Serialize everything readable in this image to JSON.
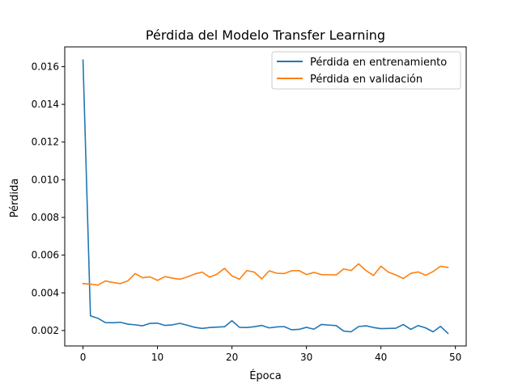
{
  "chart_data": {
    "type": "line",
    "title": "Pérdida del Modelo Transfer Learning",
    "xlabel": "Época",
    "ylabel": "Pérdida",
    "xlim": [
      -2.45,
      51.45
    ],
    "ylim": [
      0.00118,
      0.01705
    ],
    "xticks": [
      0,
      10,
      20,
      30,
      40,
      50
    ],
    "yticks": [
      0.002,
      0.004,
      0.006,
      0.008,
      0.01,
      0.012,
      0.014,
      0.016
    ],
    "ytick_labels": [
      "0.002",
      "0.004",
      "0.006",
      "0.008",
      "0.010",
      "0.012",
      "0.014",
      "0.016"
    ],
    "grid": false,
    "legend_position": "upper right",
    "x": [
      0,
      1,
      2,
      3,
      4,
      5,
      6,
      7,
      8,
      9,
      10,
      11,
      12,
      13,
      14,
      15,
      16,
      17,
      18,
      19,
      20,
      21,
      22,
      23,
      24,
      25,
      26,
      27,
      28,
      29,
      30,
      31,
      32,
      33,
      34,
      35,
      36,
      37,
      38,
      39,
      40,
      41,
      42,
      43,
      44,
      45,
      46,
      47,
      48,
      49
    ],
    "series": [
      {
        "name": "Pérdida en entrenamiento",
        "color": "#1f77b4",
        "values": [
          0.01635,
          0.00278,
          0.00265,
          0.00242,
          0.00241,
          0.00244,
          0.00234,
          0.0023,
          0.00225,
          0.00238,
          0.00239,
          0.00227,
          0.0023,
          0.00238,
          0.00228,
          0.00217,
          0.00211,
          0.00216,
          0.00218,
          0.0022,
          0.00252,
          0.00217,
          0.00216,
          0.0022,
          0.00227,
          0.00214,
          0.00219,
          0.00221,
          0.00204,
          0.00206,
          0.00217,
          0.00207,
          0.00232,
          0.00229,
          0.00226,
          0.00197,
          0.00193,
          0.00221,
          0.00225,
          0.00216,
          0.0021,
          0.00211,
          0.00212,
          0.00232,
          0.00206,
          0.00226,
          0.00214,
          0.00193,
          0.00222,
          0.00185
        ]
      },
      {
        "name": "Pérdida en validación",
        "color": "#ff7f0e",
        "values": [
          0.00449,
          0.00446,
          0.00441,
          0.00463,
          0.00455,
          0.00449,
          0.00463,
          0.00502,
          0.0048,
          0.00485,
          0.00466,
          0.00486,
          0.00478,
          0.00472,
          0.00484,
          0.005,
          0.0051,
          0.00483,
          0.00499,
          0.0053,
          0.0049,
          0.00472,
          0.00518,
          0.0051,
          0.00474,
          0.00517,
          0.00504,
          0.00502,
          0.00517,
          0.00518,
          0.00497,
          0.00508,
          0.00497,
          0.00496,
          0.00495,
          0.00527,
          0.00518,
          0.00554,
          0.00518,
          0.00492,
          0.00541,
          0.0051,
          0.00495,
          0.00476,
          0.00503,
          0.00511,
          0.00493,
          0.00513,
          0.00541,
          0.00535
        ]
      }
    ]
  }
}
